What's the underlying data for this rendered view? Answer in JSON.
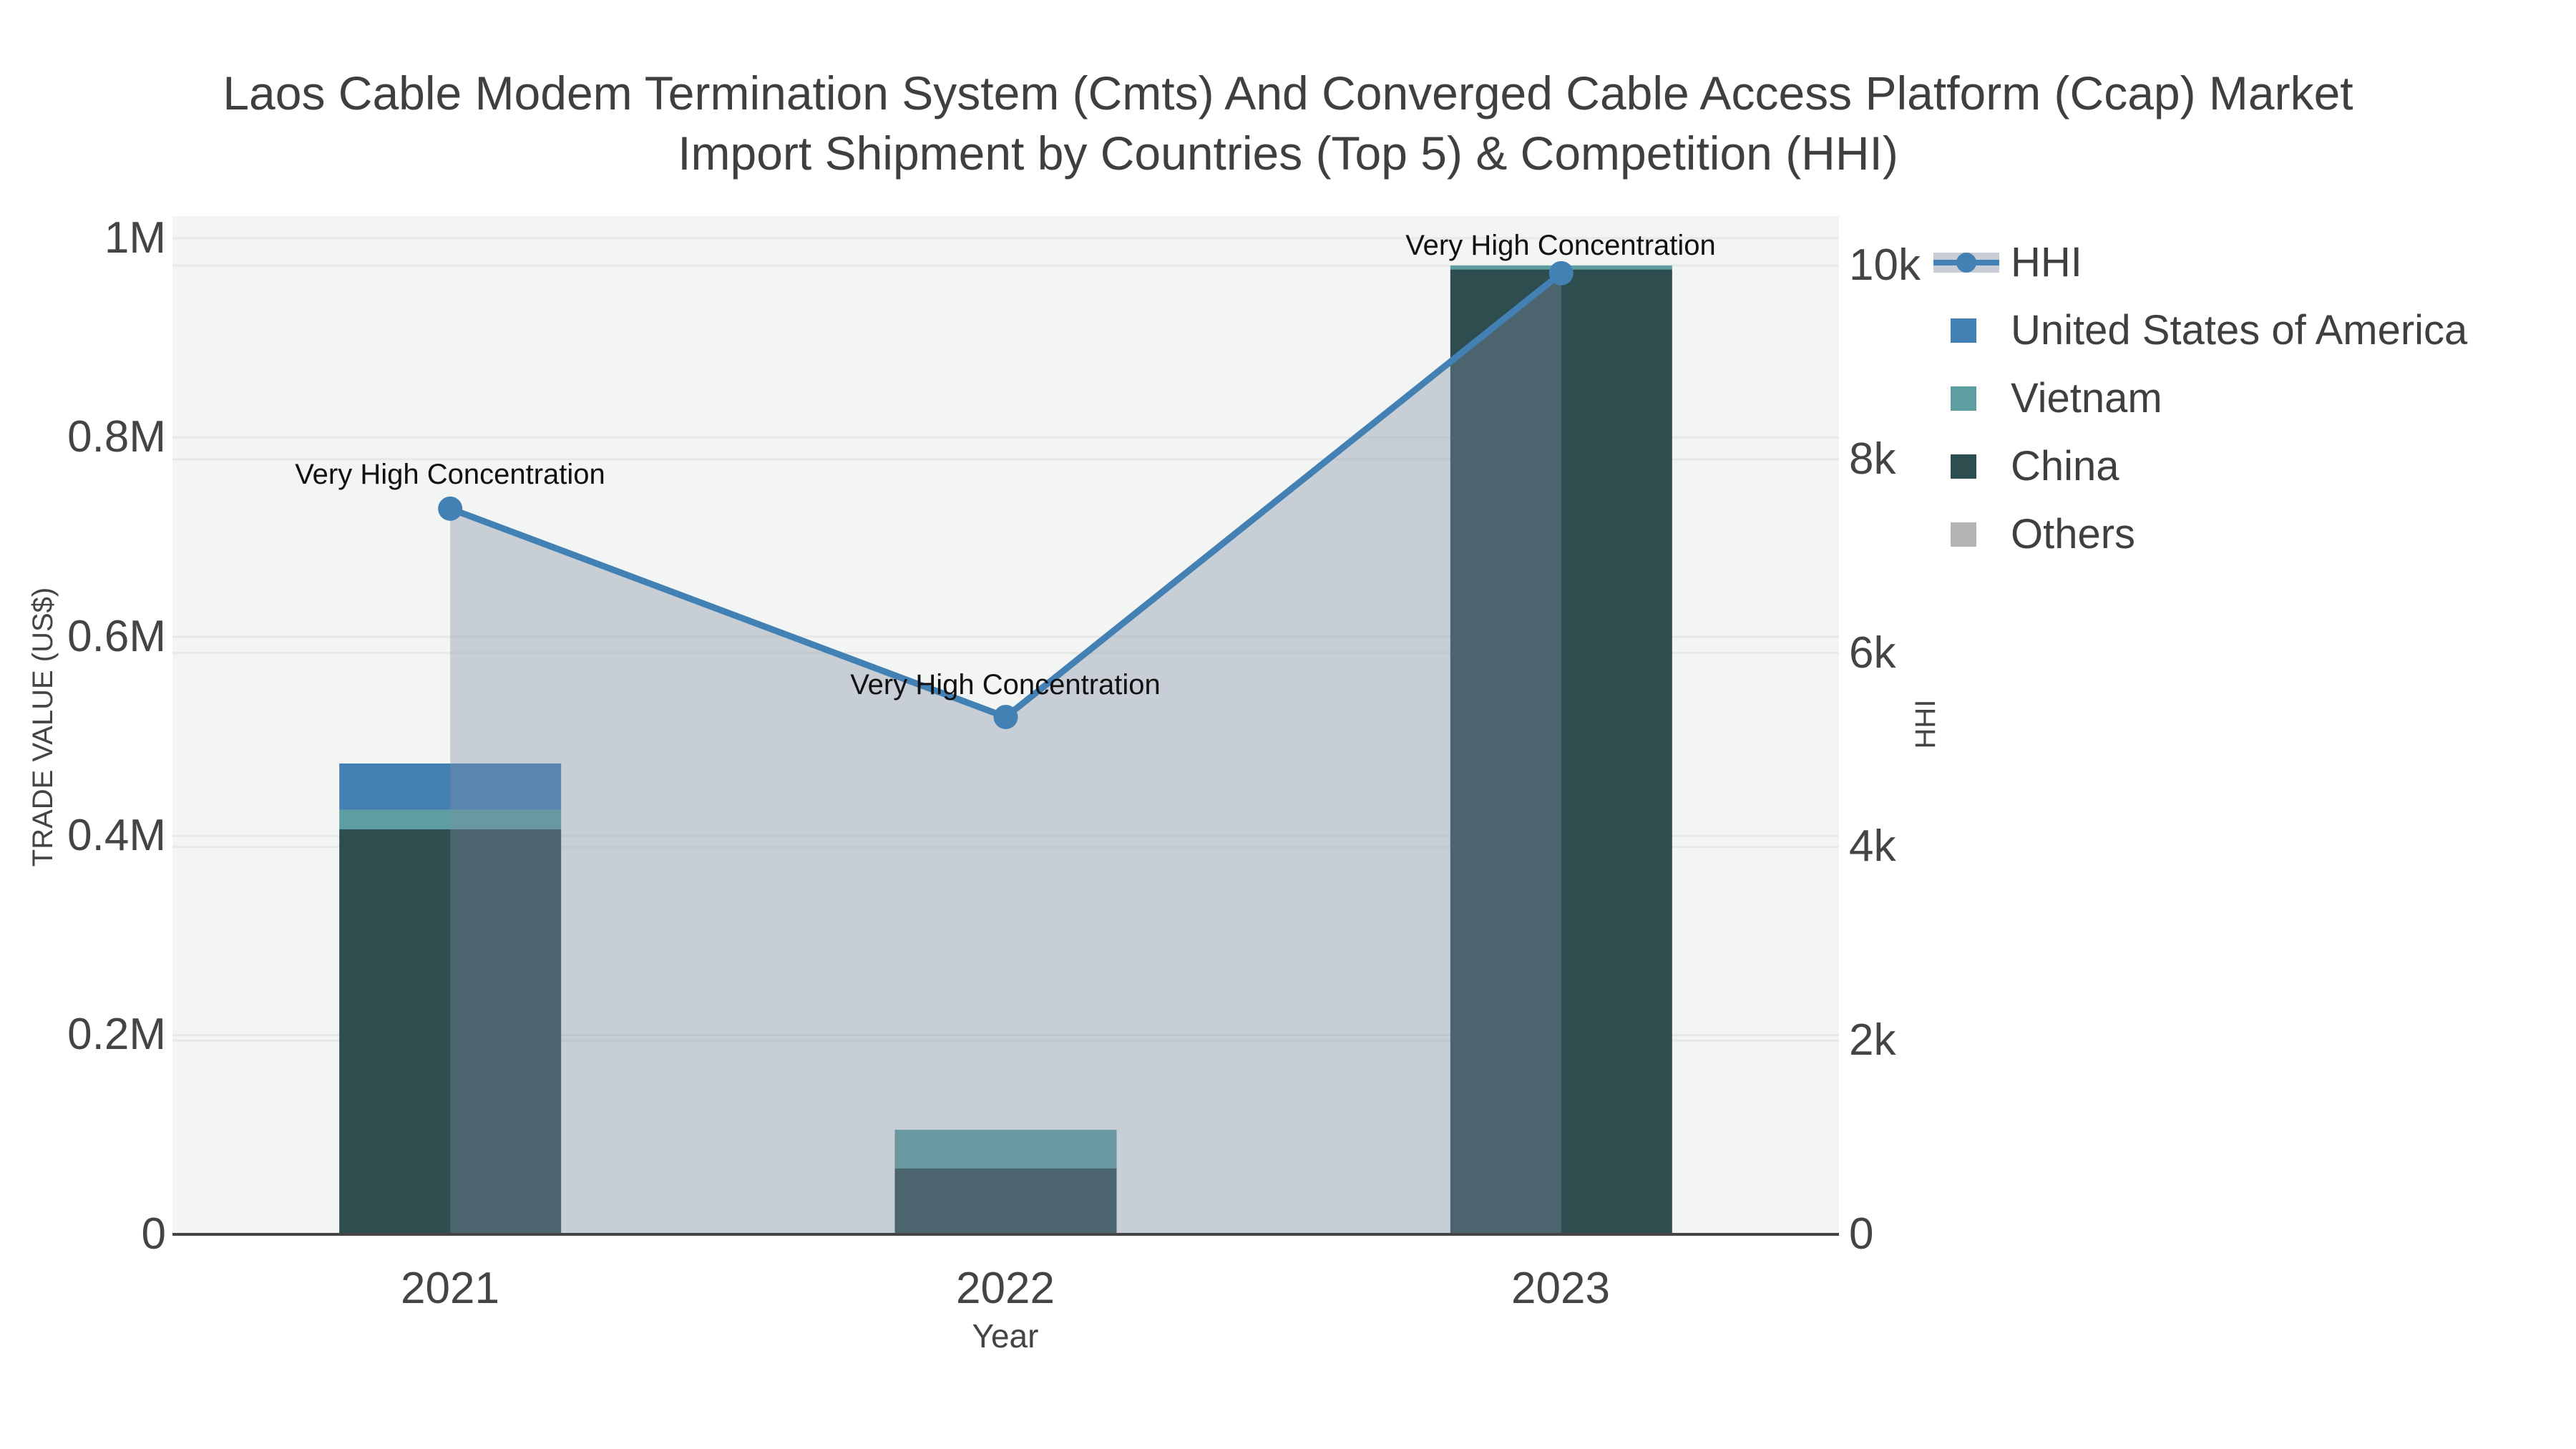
{
  "title": {
    "line1": "Laos Cable Modem Termination System (Cmts) And Converged Cable Access Platform (Ccap) Market",
    "line2": "Import Shipment by Countries (Top 5) & Competition (HHI)"
  },
  "colors": {
    "hhi_line": "#4381b5",
    "hhi_fill": "rgba(127,140,162,0.37)",
    "usa": "#4381b5",
    "vietnam": "#5d9fa0",
    "china": "#2e4d4f",
    "others": "#b3b3b3",
    "plot_background": "#f3f4f4",
    "gridline": "#e7e9e9",
    "axis_line": "#444444"
  },
  "legend": {
    "hhi_label": "HHI",
    "usa_label": "United States of America",
    "vietnam_label": "Vietnam",
    "china_label": "China",
    "others_label": "Others"
  },
  "annotations": {
    "a2021": "Very High Concentration",
    "a2022": "Very High Concentration",
    "a2023": "Very High Concentration"
  },
  "axes": {
    "left": {
      "label": "TRADE VALUE (US$)",
      "ticks": [
        "0",
        "0.2M",
        "0.4M",
        "0.6M",
        "0.8M",
        "1M"
      ]
    },
    "right": {
      "label": "HHI",
      "ticks": [
        "0",
        "2k",
        "4k",
        "6k",
        "8k",
        "10k"
      ]
    },
    "x": {
      "label": "Year",
      "ticks": [
        "2021",
        "2022",
        "2023"
      ]
    }
  },
  "chart_data": {
    "type": "bar",
    "subtype": "stacked-bars-with-line-area",
    "categories": [
      "2021",
      "2022",
      "2023"
    ],
    "bar_series": [
      {
        "name": "United States of America",
        "color": "#4381b5",
        "values": [
          46600,
          0,
          0
        ]
      },
      {
        "name": "Vietnam",
        "color": "#5d9fa0",
        "values": [
          19500,
          38900,
          4000
        ]
      },
      {
        "name": "China",
        "color": "#2e4d4f",
        "values": [
          406600,
          66100,
          968700
        ]
      },
      {
        "name": "Others",
        "color": "#b3b3b3",
        "values": [
          0,
          0,
          0
        ]
      }
    ],
    "stack_order_bottom_to_top": [
      "China",
      "Vietnam",
      "United States of America",
      "Others"
    ],
    "line_series": {
      "name": "HHI",
      "color": "#4381b5",
      "area_fill": "rgba(127,140,162,0.37)",
      "values": [
        7490,
        5340,
        9920
      ],
      "axis": "right"
    },
    "title": "Laos Cable Modem Termination System (Cmts) And Converged Cable Access Platform (Ccap) Market Import Shipment by Countries (Top 5) & Competition (HHI)",
    "xlabel": "Year",
    "ylabel_left": "TRADE VALUE (US$)",
    "ylabel_right": "HHI",
    "ylim_left": [
      0,
      1000000
    ],
    "ylim_right": [
      0,
      10000
    ],
    "grid": true,
    "legend_position": "right",
    "annotations": [
      "Very High Concentration",
      "Very High Concentration",
      "Very High Concentration"
    ]
  }
}
